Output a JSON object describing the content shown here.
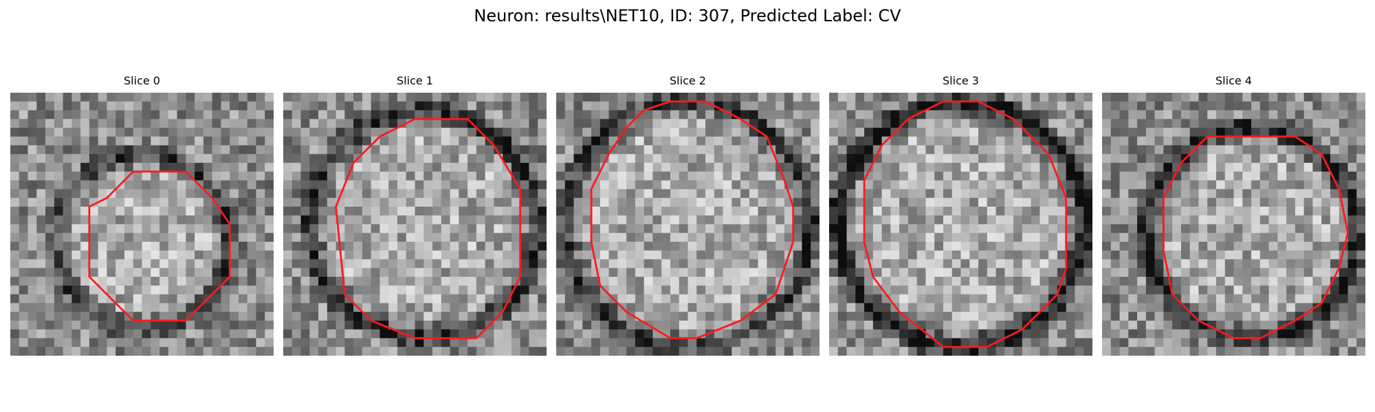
{
  "figure": {
    "title": "Neuron: results\\NET10, ID: 307, Predicted Label: CV",
    "contour_color": "#ff1a1a",
    "colormap": "gray"
  },
  "slices": [
    {
      "title": "Slice 0",
      "contour": [
        [
          14,
          9
        ],
        [
          20,
          9
        ],
        [
          23,
          12
        ],
        [
          25,
          15
        ],
        [
          25,
          21
        ],
        [
          23,
          23
        ],
        [
          20,
          26
        ],
        [
          14,
          26
        ],
        [
          11,
          23
        ],
        [
          9,
          21
        ],
        [
          9,
          13
        ],
        [
          11,
          12
        ]
      ]
    },
    {
      "title": "Slice 1",
      "contour": [
        [
          15,
          3
        ],
        [
          21,
          3
        ],
        [
          24,
          6
        ],
        [
          27,
          11
        ],
        [
          27,
          21
        ],
        [
          25,
          25
        ],
        [
          22,
          28
        ],
        [
          15,
          28
        ],
        [
          10,
          26
        ],
        [
          7,
          23
        ],
        [
          6,
          13
        ],
        [
          8,
          8
        ],
        [
          11,
          5
        ]
      ]
    },
    {
      "title": "Slice 2",
      "contour": [
        [
          13,
          1
        ],
        [
          17,
          1
        ],
        [
          21,
          3
        ],
        [
          24,
          5
        ],
        [
          26,
          10
        ],
        [
          27,
          13
        ],
        [
          27,
          17
        ],
        [
          25,
          23
        ],
        [
          21,
          26
        ],
        [
          16,
          28
        ],
        [
          13,
          28
        ],
        [
          8,
          25
        ],
        [
          5,
          22
        ],
        [
          4,
          17
        ],
        [
          4,
          11
        ],
        [
          6,
          7
        ],
        [
          8,
          4
        ],
        [
          10,
          2
        ]
      ]
    },
    {
      "title": "Slice 3",
      "contour": [
        [
          13,
          1
        ],
        [
          17,
          1
        ],
        [
          21,
          3
        ],
        [
          25,
          7
        ],
        [
          27,
          12
        ],
        [
          27,
          20
        ],
        [
          26,
          23
        ],
        [
          22,
          27
        ],
        [
          18,
          29
        ],
        [
          13,
          29
        ],
        [
          8,
          25
        ],
        [
          5,
          21
        ],
        [
          4,
          17
        ],
        [
          4,
          10
        ],
        [
          6,
          6
        ],
        [
          9,
          3
        ]
      ]
    },
    {
      "title": "Slice 4",
      "contour": [
        [
          12,
          5
        ],
        [
          22,
          5
        ],
        [
          25,
          7
        ],
        [
          27,
          11
        ],
        [
          28,
          16
        ],
        [
          27,
          20
        ],
        [
          25,
          24
        ],
        [
          22,
          26
        ],
        [
          18,
          28
        ],
        [
          15,
          28
        ],
        [
          11,
          26
        ],
        [
          8,
          23
        ],
        [
          7,
          18
        ],
        [
          7,
          12
        ],
        [
          9,
          8
        ]
      ]
    }
  ]
}
